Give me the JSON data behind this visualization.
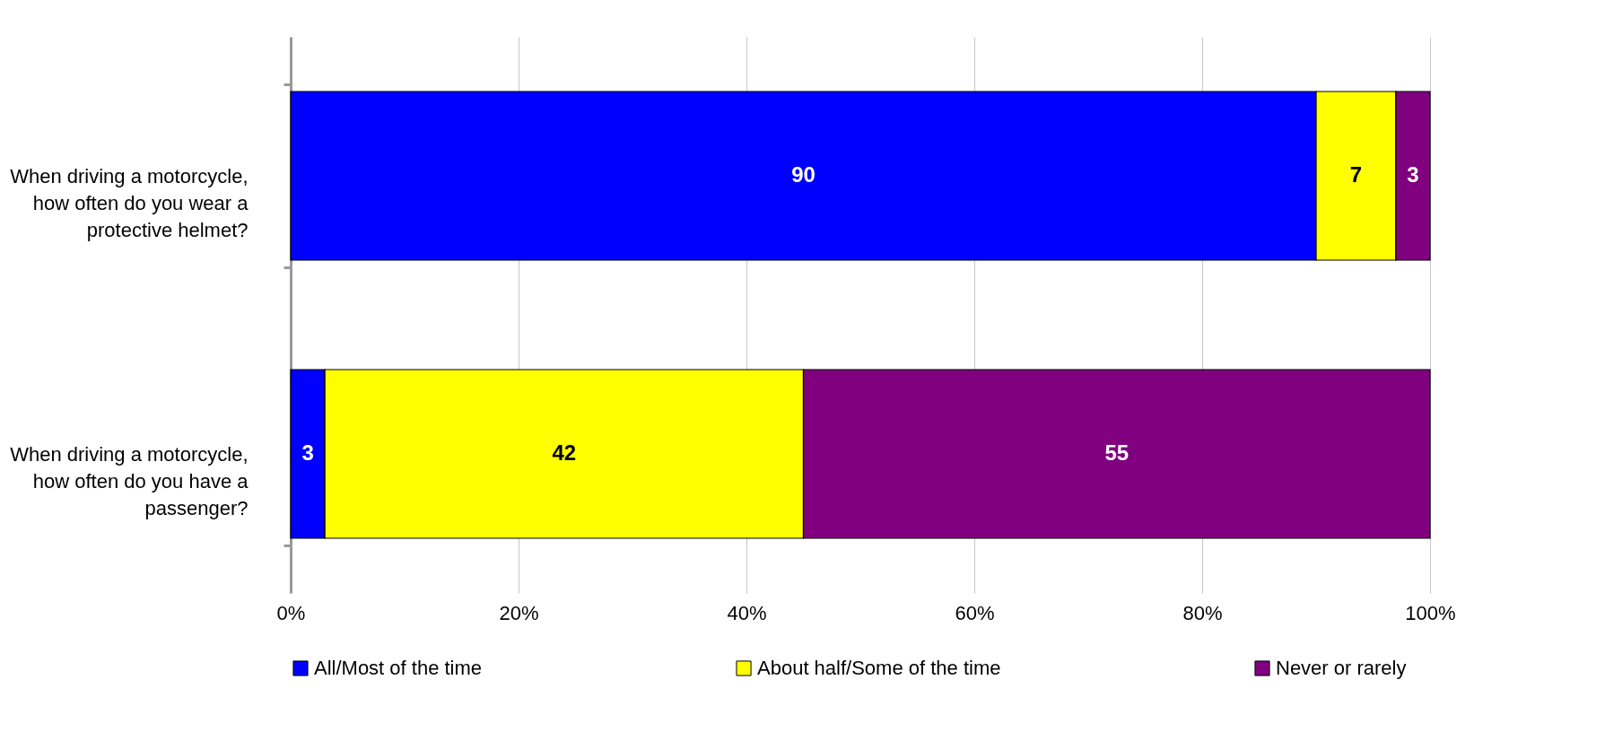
{
  "chart_data": {
    "type": "bar",
    "orientation": "horizontal",
    "stacked": true,
    "data_labels": true,
    "grid": "x",
    "legend": "bottom",
    "categories": [
      "When driving a motorcycle, how often do you wear a protective helmet?",
      "When driving a motorcycle, how often do you have a passenger?"
    ],
    "series": [
      {
        "name": "All/Most of the time",
        "color": "#0000ff",
        "values": [
          90,
          3
        ]
      },
      {
        "name": "About half/Some of the time",
        "color": "#ffff00",
        "values": [
          7,
          42
        ]
      },
      {
        "name": "Never or rarely",
        "color": "#800080",
        "values": [
          3,
          55
        ]
      }
    ],
    "xlim": [
      0,
      100
    ],
    "xticks": [
      {
        "value": 0,
        "label": "0%"
      },
      {
        "value": 20,
        "label": "20%"
      },
      {
        "value": 40,
        "label": "40%"
      },
      {
        "value": 60,
        "label": "60%"
      },
      {
        "value": 80,
        "label": "80%"
      },
      {
        "value": 100,
        "label": "100%"
      }
    ]
  }
}
